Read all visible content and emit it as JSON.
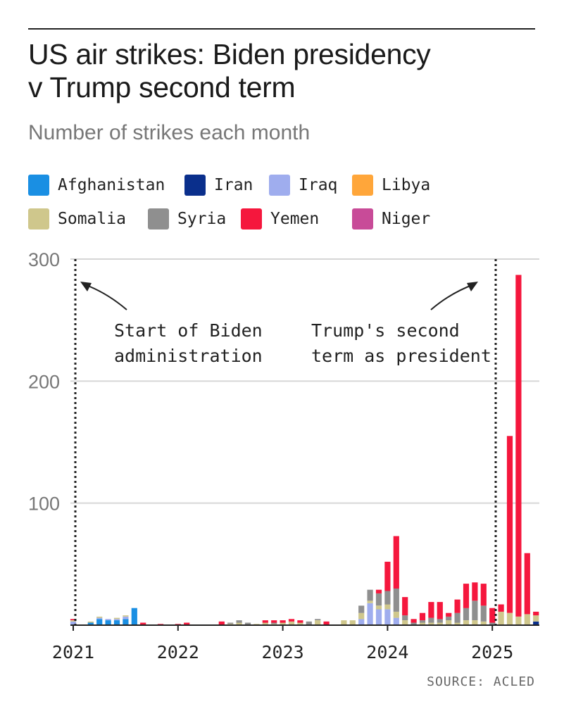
{
  "header": {
    "title_line1": "US air strikes: Biden presidency",
    "title_line2": "v Trump second term",
    "subtitle": "Number of strikes each month"
  },
  "legend": [
    {
      "label": "Afghanistan",
      "color": "#1a8fe3"
    },
    {
      "label": "Iran",
      "color": "#0a2f8c"
    },
    {
      "label": "Iraq",
      "color": "#9fadee"
    },
    {
      "label": "Libya",
      "color": "#ffa63a"
    },
    {
      "label": "Somalia",
      "color": "#cfc78c"
    },
    {
      "label": "Syria",
      "color": "#8f8f8f"
    },
    {
      "label": "Yemen",
      "color": "#f5173d"
    },
    {
      "label": "Niger",
      "color": "#c84b98"
    }
  ],
  "annotations": {
    "biden_line1": "Start of Biden",
    "biden_line2": "administration",
    "trump_line1": "Trump's second",
    "trump_line2": "term as president"
  },
  "source": "SOURCE: ACLED",
  "chart_data": {
    "type": "bar",
    "stacked": true,
    "title": "US air strikes: Biden presidency v Trump second term",
    "subtitle": "Number of strikes each month",
    "ylim": [
      0,
      300
    ],
    "yticks": [
      100,
      200,
      300
    ],
    "xticks": [
      "2021",
      "2022",
      "2023",
      "2024",
      "2025"
    ],
    "series_order": [
      "Afghanistan",
      "Iran",
      "Iraq",
      "Libya",
      "Somalia",
      "Syria",
      "Yemen",
      "Niger"
    ],
    "categories": [
      "2021-01",
      "2021-02",
      "2021-03",
      "2021-04",
      "2021-05",
      "2021-06",
      "2021-07",
      "2021-08",
      "2021-09",
      "2021-10",
      "2021-11",
      "2021-12",
      "2022-01",
      "2022-02",
      "2022-03",
      "2022-04",
      "2022-05",
      "2022-06",
      "2022-07",
      "2022-08",
      "2022-09",
      "2022-10",
      "2022-11",
      "2022-12",
      "2023-01",
      "2023-02",
      "2023-03",
      "2023-04",
      "2023-05",
      "2023-06",
      "2023-07",
      "2023-08",
      "2023-09",
      "2023-10",
      "2023-11",
      "2023-12",
      "2024-01",
      "2024-02",
      "2024-03",
      "2024-04",
      "2024-05",
      "2024-06",
      "2024-07",
      "2024-08",
      "2024-09",
      "2024-10",
      "2024-11",
      "2024-12",
      "2025-01",
      "2025-02",
      "2025-03",
      "2025-04",
      "2025-05",
      "2025-06"
    ],
    "series": [
      {
        "name": "Afghanistan",
        "values": [
          0,
          0,
          2,
          5,
          4,
          4,
          5,
          14,
          0,
          0,
          0,
          0,
          0,
          0,
          0,
          0,
          0,
          0,
          0,
          0,
          0,
          0,
          0,
          0,
          0,
          0,
          0,
          0,
          0,
          0,
          0,
          0,
          0,
          0,
          0,
          0,
          0,
          0,
          0,
          0,
          0,
          0,
          0,
          0,
          0,
          0,
          0,
          0,
          0,
          0,
          0,
          0,
          0,
          0
        ]
      },
      {
        "name": "Iran",
        "values": [
          0,
          0,
          0,
          0,
          0,
          0,
          0,
          0,
          0,
          0,
          0,
          0,
          0,
          0,
          0,
          0,
          0,
          0,
          0,
          0,
          0,
          0,
          0,
          0,
          0,
          0,
          0,
          0,
          0,
          0,
          0,
          0,
          0,
          0,
          0,
          0,
          0,
          0,
          0,
          0,
          0,
          0,
          0,
          0,
          0,
          0,
          0,
          0,
          0,
          0,
          0,
          0,
          0,
          3
        ]
      },
      {
        "name": "Iraq",
        "values": [
          3,
          0,
          0,
          1,
          1,
          1,
          2,
          0,
          0,
          0,
          0,
          0,
          0,
          0,
          0,
          0,
          0,
          0,
          0,
          0,
          0,
          0,
          0,
          0,
          0,
          0,
          0,
          0,
          0,
          0,
          0,
          0,
          0,
          5,
          18,
          13,
          13,
          6,
          0,
          0,
          0,
          0,
          0,
          0,
          0,
          0,
          0,
          0,
          0,
          0,
          0,
          0,
          0,
          0
        ]
      },
      {
        "name": "Libya",
        "values": [
          0,
          0,
          0,
          0,
          0,
          0,
          0,
          0,
          0,
          0,
          0,
          0,
          0,
          0,
          0,
          0,
          0,
          0,
          0,
          0,
          0,
          0,
          0,
          0,
          0,
          0,
          0,
          0,
          0,
          0,
          0,
          0,
          0,
          0,
          0,
          0,
          0,
          0,
          0,
          0,
          0,
          0,
          0,
          0,
          0,
          0,
          0,
          0,
          0,
          0,
          0,
          0,
          0,
          0
        ]
      },
      {
        "name": "Somalia",
        "values": [
          1,
          0,
          1,
          1,
          0,
          1,
          1,
          0,
          0,
          0,
          0,
          0,
          0,
          0,
          0,
          0,
          0,
          0,
          1,
          2,
          0,
          1,
          2,
          1,
          2,
          3,
          2,
          0,
          4,
          0,
          0,
          4,
          4,
          5,
          2,
          3,
          4,
          5,
          4,
          0,
          2,
          2,
          2,
          4,
          2,
          4,
          4,
          3,
          0,
          11,
          10,
          7,
          9,
          5
        ]
      },
      {
        "name": "Syria",
        "values": [
          0,
          0,
          0,
          0,
          0,
          0,
          0,
          0,
          0,
          0,
          0,
          0,
          0,
          0,
          0,
          0,
          0,
          0,
          1,
          2,
          2,
          0,
          0,
          1,
          0,
          0,
          0,
          3,
          1,
          0,
          0,
          0,
          0,
          6,
          9,
          10,
          11,
          19,
          4,
          2,
          2,
          4,
          3,
          3,
          8,
          10,
          16,
          13,
          2,
          0,
          0,
          0,
          0,
          0
        ]
      },
      {
        "name": "Yemen",
        "values": [
          1,
          0,
          0,
          0,
          0,
          0,
          0,
          0,
          2,
          0,
          1,
          0,
          1,
          2,
          0,
          0,
          0,
          3,
          0,
          0,
          0,
          0,
          2,
          2,
          2,
          2,
          2,
          0,
          0,
          3,
          0,
          0,
          0,
          0,
          0,
          3,
          24,
          43,
          15,
          3,
          6,
          13,
          14,
          3,
          11,
          20,
          15,
          18,
          12,
          6,
          145,
          280,
          50,
          3
        ]
      },
      {
        "name": "Niger",
        "values": [
          0,
          0,
          0,
          0,
          0,
          0,
          0,
          0,
          0,
          0,
          0,
          0,
          0,
          0,
          0,
          0,
          0,
          0,
          0,
          0,
          0,
          0,
          0,
          0,
          0,
          0,
          0,
          0,
          0,
          0,
          0,
          0,
          0,
          0,
          0,
          0,
          0,
          0,
          0,
          0,
          0,
          0,
          0,
          0,
          0,
          0,
          0,
          0,
          0,
          0,
          0,
          0,
          0,
          0
        ]
      }
    ]
  }
}
